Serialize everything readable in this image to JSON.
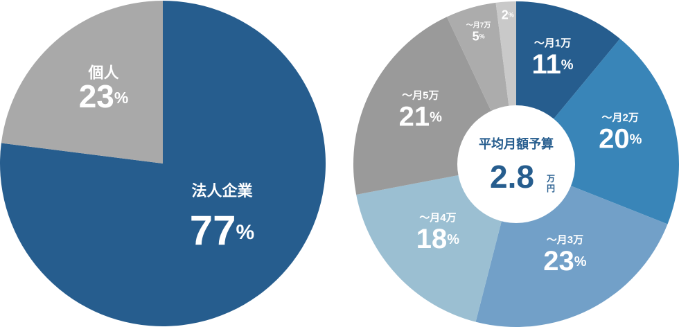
{
  "chart_data": [
    {
      "type": "pie",
      "categories": [
        "法人企業",
        "個人"
      ],
      "values": [
        77,
        23
      ],
      "value_unit": "%",
      "colors": [
        "#265d8e",
        "#a9a9a9"
      ]
    },
    {
      "type": "pie",
      "categories": [
        "～月1万",
        "～月2万",
        "～月3万",
        "～月4万",
        "～月5万",
        "～月7万",
        null
      ],
      "values": [
        11,
        20,
        23,
        18,
        21,
        5,
        2
      ],
      "value_unit": "%",
      "colors": [
        "#265d8e",
        "#3985b8",
        "#72a0c8",
        "#9bbfd2",
        "#9a9a9a",
        "#acacac",
        "#c9c9c9"
      ],
      "center_label": "平均月額予算",
      "center_value": 2.8,
      "center_unit": [
        "万",
        "円"
      ]
    }
  ]
}
